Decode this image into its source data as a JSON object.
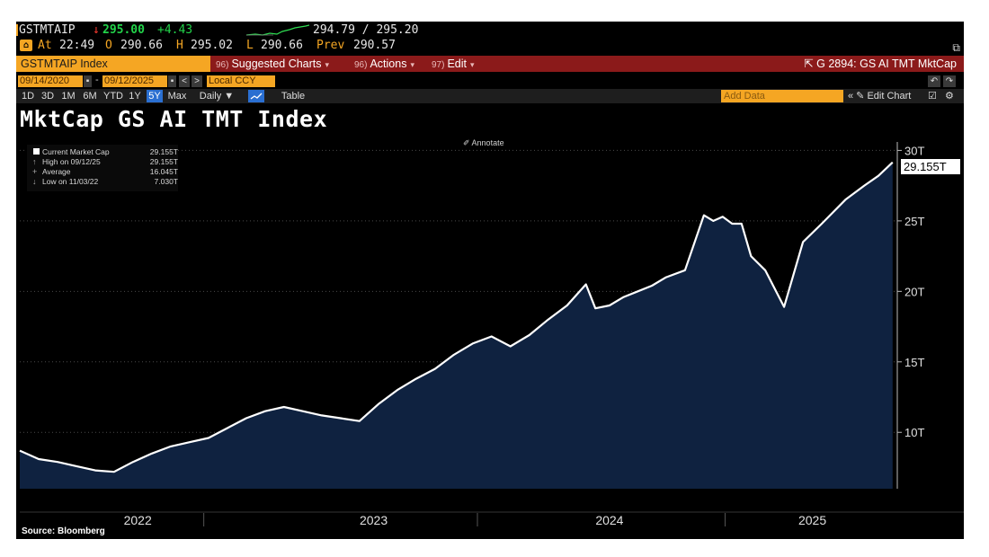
{
  "quote": {
    "ticker": "GSTMTAIP",
    "direction_glyph": "↓",
    "last": "295.00",
    "change": "+4.43",
    "bid_ask": "294.79 / 295.20"
  },
  "ohlc": {
    "at_label": "At",
    "time": "22:49",
    "open_label": "O",
    "open": "290.66",
    "high_label": "H",
    "high": "295.02",
    "low_label": "L",
    "low": "290.66",
    "prev_label": "Prev",
    "prev": "290.57"
  },
  "menu": {
    "security": "GSTMTAIP Index",
    "items": [
      {
        "num": "96)",
        "label": "Suggested Charts"
      },
      {
        "num": "96)",
        "label": "Actions"
      },
      {
        "num": "97)",
        "label": "Edit"
      }
    ],
    "chart_name": "G 2894: GS AI TMT MktCap"
  },
  "dates": {
    "start": "09/14/2020",
    "end": "09/12/2025",
    "currency": "Local CCY"
  },
  "range": {
    "buttons": [
      "1D",
      "3D",
      "1M",
      "6M",
      "YTD",
      "1Y",
      "5Y",
      "Max"
    ],
    "active": "5Y",
    "period": "Daily ▼",
    "table": "Table",
    "add_data_placeholder": "Add Data",
    "edit_chart": "« ✎ Edit Chart"
  },
  "annotate_label": "Annotate",
  "source": "Source: Bloomberg",
  "colors": {
    "orange": "#f5a623",
    "menu_red": "#8b1a1a",
    "green": "#22d34a",
    "fill": "#0f2240",
    "line": "#ffffff"
  },
  "chart_data": {
    "type": "area",
    "title": "MktCap GS AI TMT Index",
    "series": [
      {
        "name": "Current Market Cap",
        "x": [
          2022.0,
          2022.08,
          2022.16,
          2022.24,
          2022.32,
          2022.4,
          2022.48,
          2022.56,
          2022.64,
          2022.72,
          2022.8,
          2022.88,
          2022.96,
          2023.04,
          2023.12,
          2023.2,
          2023.28,
          2023.36,
          2023.44,
          2023.52,
          2023.6,
          2023.68,
          2023.76,
          2023.84,
          2023.92,
          2024.0,
          2024.08,
          2024.16,
          2024.24,
          2024.32,
          2024.4,
          2024.44,
          2024.5,
          2024.56,
          2024.62,
          2024.68,
          2024.74,
          2024.82,
          2024.9,
          2024.94,
          2024.98,
          2025.02,
          2025.06,
          2025.1,
          2025.16,
          2025.24,
          2025.32,
          2025.4,
          2025.5,
          2025.58,
          2025.64,
          2025.7
        ],
        "values": [
          8.7,
          8.1,
          7.9,
          7.6,
          7.3,
          7.2,
          7.9,
          8.5,
          9.0,
          9.3,
          9.6,
          10.3,
          11.0,
          11.5,
          11.8,
          11.5,
          11.2,
          11.0,
          10.8,
          12.0,
          13.0,
          13.8,
          14.5,
          15.5,
          16.3,
          16.8,
          16.1,
          16.9,
          18.0,
          19.0,
          20.5,
          18.8,
          19.0,
          19.6,
          20.0,
          20.4,
          21.0,
          21.5,
          25.4,
          25.0,
          25.3,
          24.8,
          24.8,
          22.5,
          21.5,
          18.9,
          23.5,
          24.8,
          26.5,
          27.5,
          28.2,
          29.155
        ]
      }
    ],
    "xlabel": "",
    "ylabel": "",
    "x_tick_labels": [
      "2022",
      "2023",
      "2024",
      "2025"
    ],
    "y_tick_labels": [
      "10T",
      "15T",
      "20T",
      "25T",
      "30T"
    ],
    "y_ticks": [
      10,
      15,
      20,
      25,
      30
    ],
    "ylim": [
      6,
      30.6
    ],
    "xlim": [
      2022.0,
      2025.72
    ],
    "last_label": "29.155T",
    "legend": [
      {
        "label": "Current Market Cap",
        "value": "29.155T",
        "glyph": "■"
      },
      {
        "label": "High on 09/12/25",
        "value": "29.155T",
        "glyph": "↑"
      },
      {
        "label": "Average",
        "value": "16.045T",
        "glyph": "+"
      },
      {
        "label": "Low on 11/03/22",
        "value": "7.030T",
        "glyph": "↓"
      }
    ]
  }
}
